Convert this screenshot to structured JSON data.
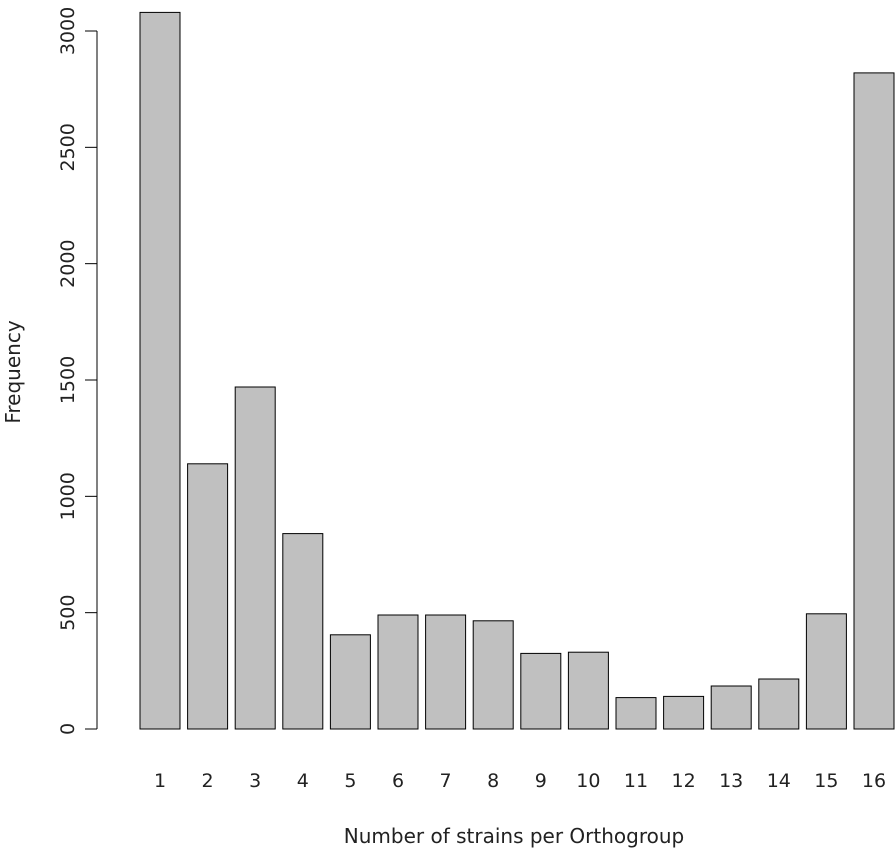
{
  "chart_data": {
    "type": "bar",
    "categories": [
      "1",
      "2",
      "3",
      "4",
      "5",
      "6",
      "7",
      "8",
      "9",
      "10",
      "11",
      "12",
      "13",
      "14",
      "15",
      "16"
    ],
    "values": [
      3080,
      1140,
      1470,
      840,
      405,
      490,
      490,
      465,
      325,
      330,
      135,
      140,
      185,
      215,
      495,
      2820
    ],
    "xlabel": "Number of strains per Orthogroup",
    "ylabel": "Frequency",
    "ylim": [
      0,
      3000
    ],
    "yticks": [
      0,
      500,
      1000,
      1500,
      2000,
      2500,
      3000
    ],
    "bar_fill": "#c0c0c0",
    "bar_stroke": "#000000",
    "grid": false
  }
}
